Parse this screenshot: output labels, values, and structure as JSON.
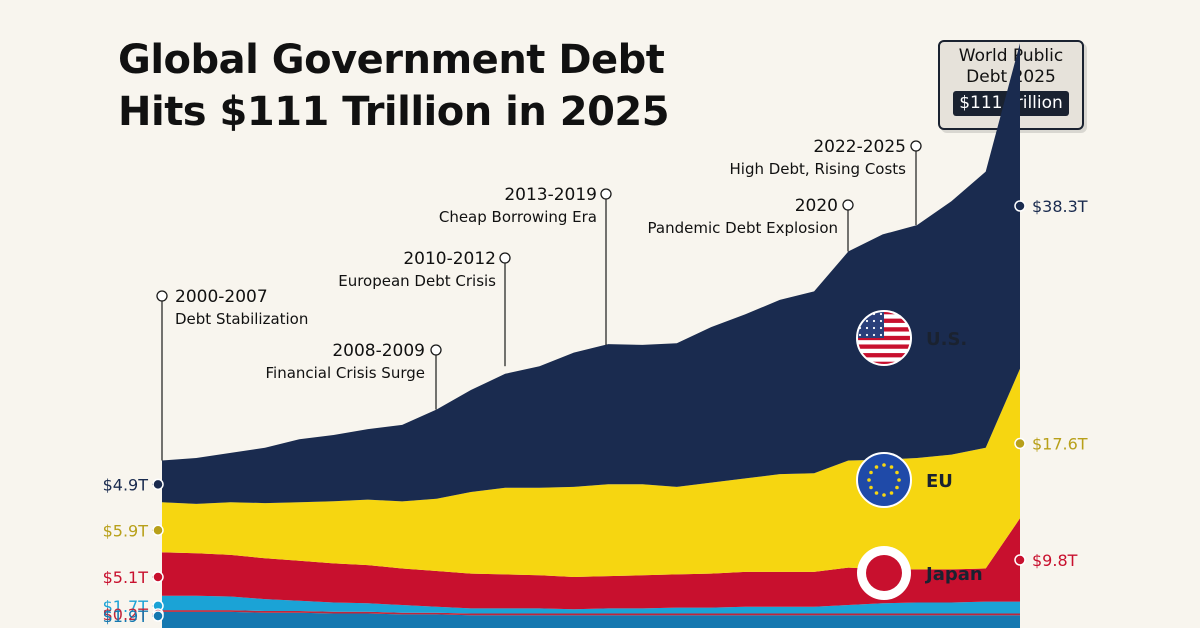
{
  "title_line1": "Global Government Debt",
  "title_line2": "Hits $111 Trillion in 2025",
  "badge": {
    "line1": "World Public",
    "line2": "Debt 2025",
    "value": "$111 Trillion"
  },
  "colors": {
    "us": "#1a2b4f",
    "eu": "#f6d611",
    "japan": "#c8102e",
    "band4": "#1ba3d6",
    "band5": "#c2263a",
    "band6": "#1578b0",
    "background": "#f8f5ee"
  },
  "chart_data": {
    "type": "area",
    "title": "Global Government Debt Hits $111 Trillion in 2025",
    "x": [
      2000,
      2001,
      2002,
      2003,
      2004,
      2005,
      2006,
      2007,
      2008,
      2009,
      2010,
      2011,
      2012,
      2013,
      2014,
      2015,
      2016,
      2017,
      2018,
      2019,
      2020,
      2021,
      2022,
      2023,
      2024,
      2025
    ],
    "xlim": [
      2000,
      2025
    ],
    "series": [
      {
        "name": "U.S.",
        "key": "us",
        "start_label": "$4.9T",
        "end_label": "$38.3T",
        "values": [
          4.9,
          5.4,
          5.8,
          6.5,
          7.4,
          7.8,
          8.3,
          9.0,
          10.5,
          12.0,
          13.4,
          14.3,
          15.8,
          16.5,
          16.4,
          16.9,
          18.3,
          19.3,
          20.5,
          21.4,
          24.6,
          26.5,
          27.4,
          29.8,
          32.5,
          38.3
        ]
      },
      {
        "name": "EU",
        "key": "eu",
        "start_label": "$5.9T",
        "end_label": "$17.6T",
        "values": [
          5.9,
          5.8,
          6.2,
          6.5,
          6.9,
          7.3,
          7.7,
          7.9,
          8.5,
          9.6,
          10.2,
          10.3,
          10.6,
          10.8,
          10.7,
          10.3,
          10.7,
          11.0,
          11.5,
          11.6,
          12.6,
          12.9,
          13.1,
          13.5,
          14.2,
          17.6
        ]
      },
      {
        "name": "Japan",
        "key": "japan",
        "start_label": "$5.1T",
        "end_label": "$9.8T",
        "values": [
          5.1,
          5.0,
          4.9,
          4.8,
          4.7,
          4.6,
          4.5,
          4.3,
          4.2,
          4.1,
          4.0,
          3.9,
          3.8,
          3.8,
          3.9,
          3.9,
          4.0,
          4.1,
          4.1,
          4.1,
          4.4,
          4.0,
          3.9,
          3.9,
          3.9,
          9.8
        ]
      },
      {
        "key": "band4",
        "start_label": "$1.7T",
        "values": [
          1.7,
          1.7,
          1.6,
          1.4,
          1.2,
          1.1,
          1.0,
          0.9,
          0.7,
          0.6,
          0.6,
          0.6,
          0.5,
          0.6,
          0.6,
          0.7,
          0.7,
          0.8,
          0.8,
          0.8,
          1.0,
          1.2,
          1.3,
          1.3,
          1.4,
          1.4
        ]
      },
      {
        "key": "band5",
        "start_label": "$0.2T",
        "values": [
          0.2,
          0.2,
          0.2,
          0.2,
          0.2,
          0.2,
          0.2,
          0.2,
          0.2,
          0.2,
          0.2,
          0.2,
          0.2,
          0.2,
          0.2,
          0.2,
          0.2,
          0.2,
          0.2,
          0.2,
          0.2,
          0.2,
          0.2,
          0.2,
          0.2,
          0.2
        ]
      },
      {
        "key": "band6",
        "start_label": "$1.9T",
        "values": [
          1.9,
          1.9,
          1.9,
          1.8,
          1.8,
          1.7,
          1.7,
          1.6,
          1.6,
          1.5,
          1.5,
          1.5,
          1.5,
          1.5,
          1.5,
          1.5,
          1.5,
          1.5,
          1.5,
          1.5,
          1.5,
          1.5,
          1.5,
          1.5,
          1.5,
          1.5
        ]
      }
    ],
    "annotations": [
      {
        "label": "2000-2007",
        "desc": "Debt Stabilization",
        "year": 2000
      },
      {
        "label": "2008-2009",
        "desc": "Financial Crisis Surge",
        "year": 2008
      },
      {
        "label": "2010-2012",
        "desc": "European Debt Crisis",
        "year": 2011
      },
      {
        "label": "2013-2019",
        "desc": "Cheap Borrowing Era",
        "year": 2014
      },
      {
        "label": "2020",
        "desc": "Pandemic Debt Explosion",
        "year": 2020
      },
      {
        "label": "2022-2025",
        "desc": "High Debt, Rising Costs",
        "year": 2022
      }
    ],
    "region_labels": [
      {
        "key": "us",
        "text": "U.S.",
        "icon": "us-flag-icon"
      },
      {
        "key": "eu",
        "text": "EU",
        "icon": "eu-flag-icon"
      },
      {
        "key": "japan",
        "text": "Japan",
        "icon": "japan-flag-icon"
      }
    ]
  }
}
